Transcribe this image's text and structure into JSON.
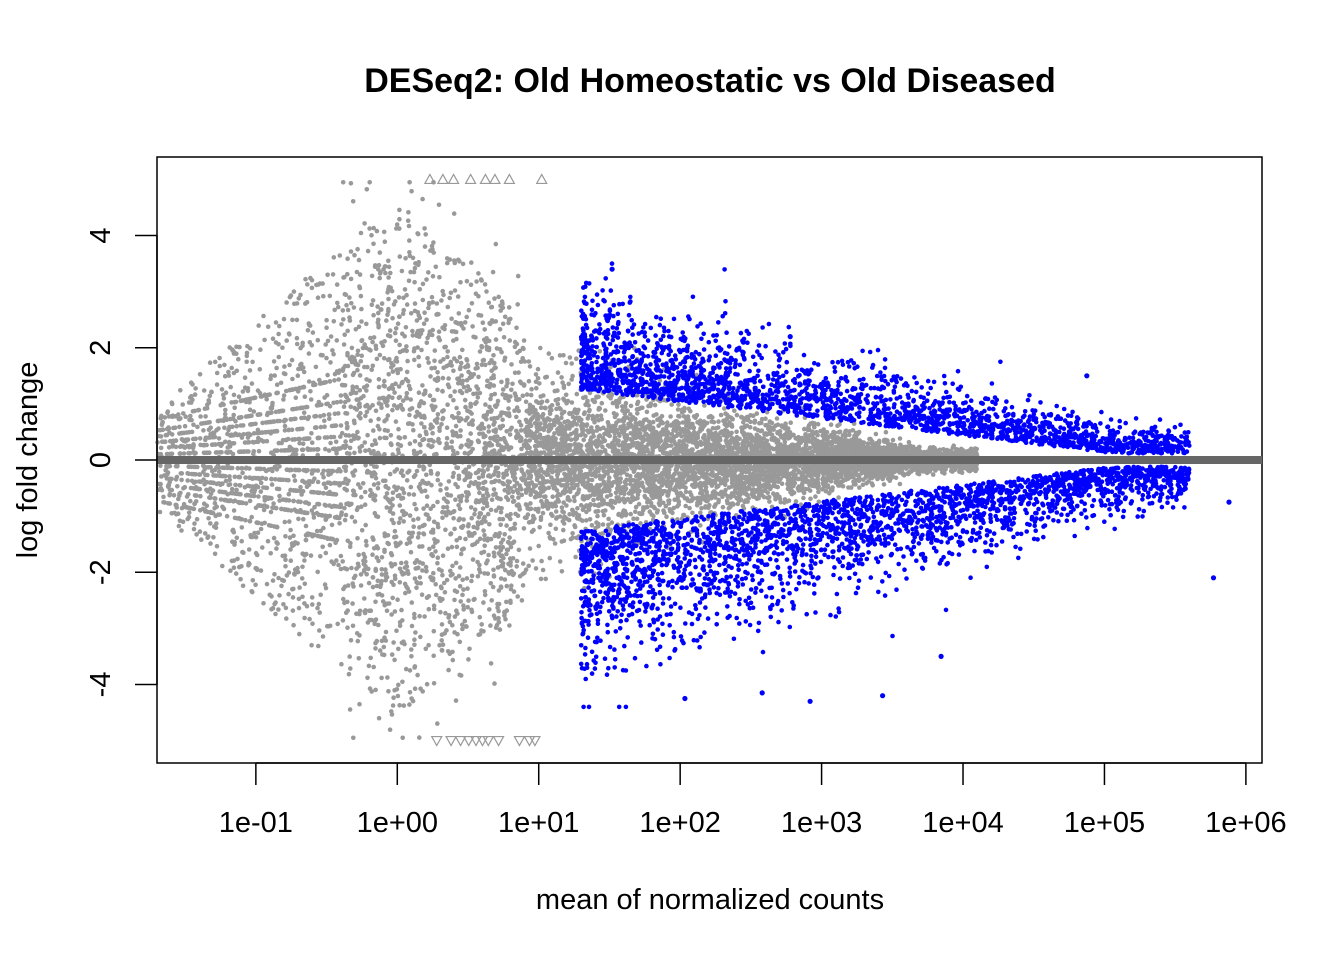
{
  "chart_data": {
    "type": "scatter",
    "title": "DESeq2: Old Homeostatic vs Old Diseased",
    "xlabel": "mean of normalized counts",
    "ylabel": "log fold change",
    "x_scale": "log10",
    "xlim": [
      0.02,
      1300000
    ],
    "ylim": [
      -5.4,
      5.4
    ],
    "x_ticks": [
      0.1,
      1,
      10,
      100,
      1000,
      10000,
      100000,
      1000000
    ],
    "x_tick_labels": [
      "1e-01",
      "1e+00",
      "1e+01",
      "1e+02",
      "1e+03",
      "1e+04",
      "1e+05",
      "1e+06"
    ],
    "y_ticks": [
      -4,
      -2,
      0,
      2,
      4
    ],
    "y_tick_labels": [
      "-4",
      "-2",
      "0",
      "2",
      "4"
    ],
    "reference_line": {
      "y": 0,
      "color": "#666666"
    },
    "grid": false,
    "legend": "none",
    "colors": {
      "not_significant": "#999999",
      "significant": "#0000FF",
      "out_of_range": "#999999"
    },
    "series": [
      {
        "role": "not_significant",
        "approx_count": 9000,
        "x_range": [
          0.02,
          20000
        ],
        "shape": "dot"
      },
      {
        "role": "significant",
        "approx_count": 5000,
        "x_range": [
          20,
          750000
        ],
        "shape": "dot",
        "extreme_points": [
          {
            "x": 33,
            "y": 3.4
          },
          {
            "x": 280,
            "y": 2.1
          },
          {
            "x": 600,
            "y": 2.2
          },
          {
            "x": 75000,
            "y": 1.5
          },
          {
            "x": 760000,
            "y": -0.75
          },
          {
            "x": 590000,
            "y": -2.1
          },
          {
            "x": 108,
            "y": -4.25
          },
          {
            "x": 830,
            "y": -4.3
          },
          {
            "x": 2700,
            "y": -4.2
          },
          {
            "x": 380,
            "y": -4.15
          },
          {
            "x": 7000,
            "y": -3.5
          }
        ]
      },
      {
        "role": "out_of_range",
        "shape": "triangle",
        "points": [
          {
            "x": 1.7,
            "y": 5
          },
          {
            "x": 2.1,
            "y": 5
          },
          {
            "x": 2.5,
            "y": 5
          },
          {
            "x": 3.3,
            "y": 5
          },
          {
            "x": 4.2,
            "y": 5
          },
          {
            "x": 4.9,
            "y": 5
          },
          {
            "x": 6.2,
            "y": 5
          },
          {
            "x": 10.5,
            "y": 5
          },
          {
            "x": 1.9,
            "y": -5
          },
          {
            "x": 2.4,
            "y": -5
          },
          {
            "x": 2.8,
            "y": -5
          },
          {
            "x": 3.2,
            "y": -5
          },
          {
            "x": 3.6,
            "y": -5
          },
          {
            "x": 4.0,
            "y": -5
          },
          {
            "x": 4.4,
            "y": -5
          },
          {
            "x": 5.2,
            "y": -5
          },
          {
            "x": 7.3,
            "y": -5
          },
          {
            "x": 8.6,
            "y": -5
          },
          {
            "x": 9.4,
            "y": -5
          }
        ]
      }
    ]
  }
}
